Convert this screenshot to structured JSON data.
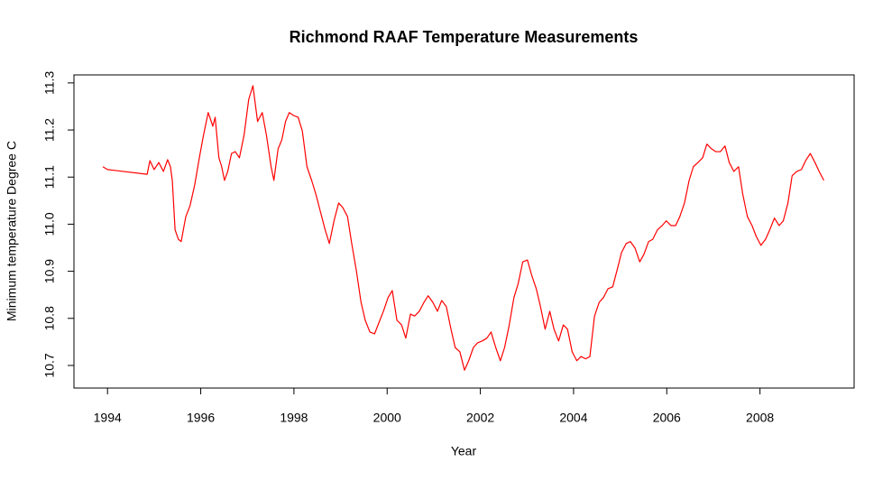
{
  "chart_data": {
    "type": "line",
    "title": "Richmond RAAF Temperature Measurements",
    "xlabel": "Year",
    "ylabel": "Minimum temperature Degree C",
    "color": "#ff0000",
    "xlim": [
      1993.28,
      2010.02
    ],
    "ylim": [
      10.652,
      11.317
    ],
    "xticks": [
      1994,
      1996,
      1998,
      2000,
      2002,
      2004,
      2006,
      2008
    ],
    "yticks": [
      10.7,
      10.8,
      10.9,
      {
        "value": 11,
        "label": "11.0"
      },
      11.1,
      11.2,
      11.3
    ],
    "grid": false,
    "x": [
      1993.9,
      1994.0,
      1994.85,
      1994.91,
      1995.0,
      1995.1,
      1995.2,
      1995.29,
      1995.35,
      1995.39,
      1995.45,
      1995.52,
      1995.58,
      1995.68,
      1995.77,
      1995.87,
      1995.97,
      1996.06,
      1996.16,
      1996.26,
      1996.31,
      1996.39,
      1996.45,
      1996.51,
      1996.58,
      1996.66,
      1996.74,
      1996.83,
      1996.93,
      1997.03,
      1997.12,
      1997.22,
      1997.32,
      1997.41,
      1997.51,
      1997.57,
      1997.66,
      1997.74,
      1997.82,
      1997.9,
      1997.99,
      1998.09,
      1998.18,
      1998.28,
      1998.38,
      1998.47,
      1998.57,
      1998.67,
      1998.76,
      1998.86,
      1998.96,
      1999.05,
      1999.15,
      1999.24,
      1999.34,
      1999.44,
      1999.53,
      1999.63,
      1999.73,
      1999.82,
      1999.92,
      2000.02,
      2000.11,
      2000.21,
      2000.31,
      2000.4,
      2000.5,
      2000.59,
      2000.69,
      2000.79,
      2000.88,
      2000.98,
      2001.08,
      2001.17,
      2001.27,
      2001.37,
      2001.46,
      2001.56,
      2001.66,
      2001.75,
      2001.85,
      2001.94,
      2002.04,
      2002.14,
      2002.23,
      2002.33,
      2002.43,
      2002.52,
      2002.62,
      2002.72,
      2002.81,
      2002.91,
      2003.01,
      2003.1,
      2003.2,
      2003.29,
      2003.39,
      2003.49,
      2003.58,
      2003.68,
      2003.78,
      2003.87,
      2003.97,
      2004.07,
      2004.16,
      2004.26,
      2004.35,
      2004.45,
      2004.55,
      2004.64,
      2004.74,
      2004.84,
      2004.93,
      2005.03,
      2005.13,
      2005.22,
      2005.32,
      2005.42,
      2005.51,
      2005.61,
      2005.7,
      2005.8,
      2005.9,
      2005.99,
      2006.09,
      2006.19,
      2006.28,
      2006.38,
      2006.48,
      2006.57,
      2006.67,
      2006.77,
      2006.86,
      2006.96,
      2007.05,
      2007.15,
      2007.25,
      2007.34,
      2007.44,
      2007.54,
      2007.63,
      2007.73,
      2007.83,
      2007.92,
      2008.02,
      2008.12,
      2008.21,
      2008.31,
      2008.41,
      2008.5,
      2008.6,
      2008.69,
      2008.79,
      2008.89,
      2008.98,
      2009.08,
      2009.18,
      2009.27,
      2009.37
    ],
    "values": [
      11.122,
      11.116,
      11.106,
      11.135,
      11.116,
      11.131,
      11.112,
      11.137,
      11.122,
      11.093,
      10.988,
      10.968,
      10.963,
      11.016,
      11.039,
      11.083,
      11.141,
      11.189,
      11.237,
      11.208,
      11.227,
      11.141,
      11.122,
      11.093,
      11.112,
      11.15,
      11.154,
      11.141,
      11.189,
      11.265,
      11.294,
      11.218,
      11.237,
      11.189,
      11.122,
      11.093,
      11.16,
      11.179,
      11.218,
      11.237,
      11.231,
      11.227,
      11.198,
      11.122,
      11.093,
      11.064,
      11.026,
      10.988,
      10.959,
      11.007,
      11.045,
      11.035,
      11.016,
      10.959,
      10.901,
      10.834,
      10.796,
      10.771,
      10.767,
      10.79,
      10.815,
      10.844,
      10.859,
      10.796,
      10.786,
      10.758,
      10.809,
      10.805,
      10.815,
      10.834,
      10.848,
      10.834,
      10.815,
      10.838,
      10.825,
      10.777,
      10.738,
      10.729,
      10.69,
      10.71,
      10.738,
      10.748,
      10.752,
      10.758,
      10.771,
      10.738,
      10.71,
      10.738,
      10.786,
      10.844,
      10.873,
      10.92,
      10.924,
      10.892,
      10.863,
      10.825,
      10.777,
      10.815,
      10.777,
      10.752,
      10.786,
      10.777,
      10.729,
      10.71,
      10.719,
      10.714,
      10.719,
      10.805,
      10.834,
      10.844,
      10.863,
      10.867,
      10.901,
      10.94,
      10.959,
      10.963,
      10.949,
      10.92,
      10.936,
      10.963,
      10.968,
      10.988,
      10.997,
      11.007,
      10.997,
      10.997,
      11.016,
      11.045,
      11.093,
      11.122,
      11.131,
      11.141,
      11.17,
      11.16,
      11.154,
      11.154,
      11.166,
      11.131,
      11.112,
      11.122,
      11.064,
      11.016,
      10.997,
      10.974,
      10.955,
      10.968,
      10.988,
      11.013,
      10.997,
      11.007,
      11.045,
      11.103,
      11.112,
      11.116,
      11.135,
      11.15,
      11.131,
      11.112,
      11.093
    ]
  }
}
